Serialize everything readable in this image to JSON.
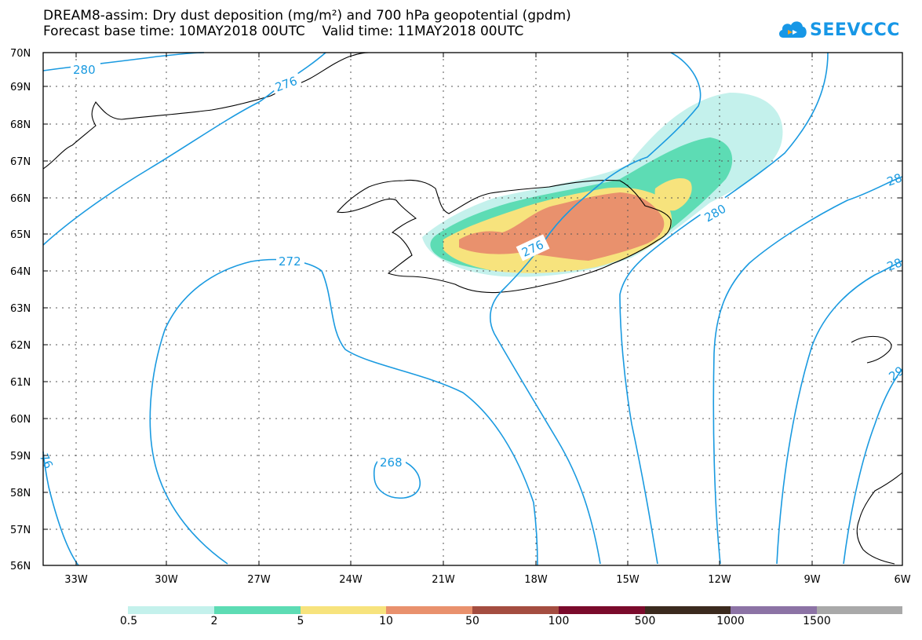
{
  "title": {
    "line1": "DREAM8-assim: Dry dust deposition (mg/m²) and 700 hPa geopotential (gpdm)",
    "line2": "Forecast base time: 10MAY2018 00UTC    Valid time: 11MAY2018 00UTC"
  },
  "logo": {
    "text": "SEEVCCC",
    "icon": "cloud-icon"
  },
  "map": {
    "lat_labels": [
      "70N",
      "69N",
      "68N",
      "67N",
      "66N",
      "65N",
      "64N",
      "63N",
      "62N",
      "61N",
      "60N",
      "59N",
      "58N",
      "57N",
      "56N"
    ],
    "lon_labels": [
      "33W",
      "30W",
      "27W",
      "24W",
      "21W",
      "18W",
      "15W",
      "12W",
      "9W",
      "6W"
    ],
    "contour_labels": [
      "280",
      "276",
      "272",
      "268",
      "276",
      "280",
      "76",
      "28",
      "28",
      "29"
    ],
    "colors": {
      "contour": "#1a9ae0",
      "frame": "#000000",
      "grid": "#555555"
    }
  },
  "legend": {
    "labels": [
      "0.5",
      "2",
      "5",
      "10",
      "50",
      "100",
      "500",
      "1000",
      "1500"
    ],
    "colors": [
      "#c4f1ec",
      "#5ddcb4",
      "#f7e37d",
      "#e9916d",
      "#a44d40",
      "#7a0a2b",
      "#3b2a1e",
      "#8c73a5",
      "#a9a9a9"
    ]
  }
}
